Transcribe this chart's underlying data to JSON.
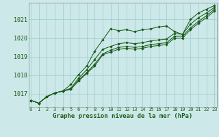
{
  "background_color": "#cce8e8",
  "grid_color": "#99cccc",
  "line_color": "#1a5c1a",
  "title": "Graphe pression niveau de la mer (hPa)",
  "ylim": [
    1016.3,
    1021.9
  ],
  "yticks": [
    1017,
    1018,
    1019,
    1020,
    1021
  ],
  "xticks": [
    0,
    1,
    2,
    3,
    4,
    5,
    6,
    7,
    8,
    9,
    10,
    11,
    12,
    13,
    14,
    15,
    16,
    17,
    18,
    19,
    20,
    21,
    22,
    23
  ],
  "series": [
    [
      1016.65,
      1016.5,
      1016.85,
      1017.05,
      1017.15,
      1017.5,
      1018.05,
      1018.5,
      1019.3,
      1019.9,
      1020.5,
      1020.4,
      1020.45,
      1020.35,
      1020.45,
      1020.5,
      1020.6,
      1020.65,
      1020.35,
      1020.2,
      1021.0,
      1021.35,
      1021.55,
      1021.75
    ],
    [
      1016.65,
      1016.5,
      1016.85,
      1017.05,
      1017.15,
      1017.3,
      1017.85,
      1018.3,
      1018.85,
      1019.4,
      1019.55,
      1019.7,
      1019.75,
      1019.7,
      1019.75,
      1019.85,
      1019.9,
      1019.95,
      1020.25,
      1020.2,
      1020.75,
      1021.1,
      1021.35,
      1021.65
    ],
    [
      1016.65,
      1016.5,
      1016.85,
      1017.05,
      1017.15,
      1017.25,
      1017.75,
      1018.15,
      1018.6,
      1019.15,
      1019.35,
      1019.5,
      1019.55,
      1019.5,
      1019.55,
      1019.65,
      1019.7,
      1019.75,
      1020.1,
      1020.1,
      1020.55,
      1020.9,
      1021.2,
      1021.55
    ],
    [
      1016.65,
      1016.5,
      1016.85,
      1017.05,
      1017.15,
      1017.25,
      1017.7,
      1018.1,
      1018.5,
      1019.1,
      1019.25,
      1019.4,
      1019.45,
      1019.4,
      1019.45,
      1019.55,
      1019.6,
      1019.65,
      1020.0,
      1020.0,
      1020.45,
      1020.8,
      1021.1,
      1021.45
    ]
  ]
}
